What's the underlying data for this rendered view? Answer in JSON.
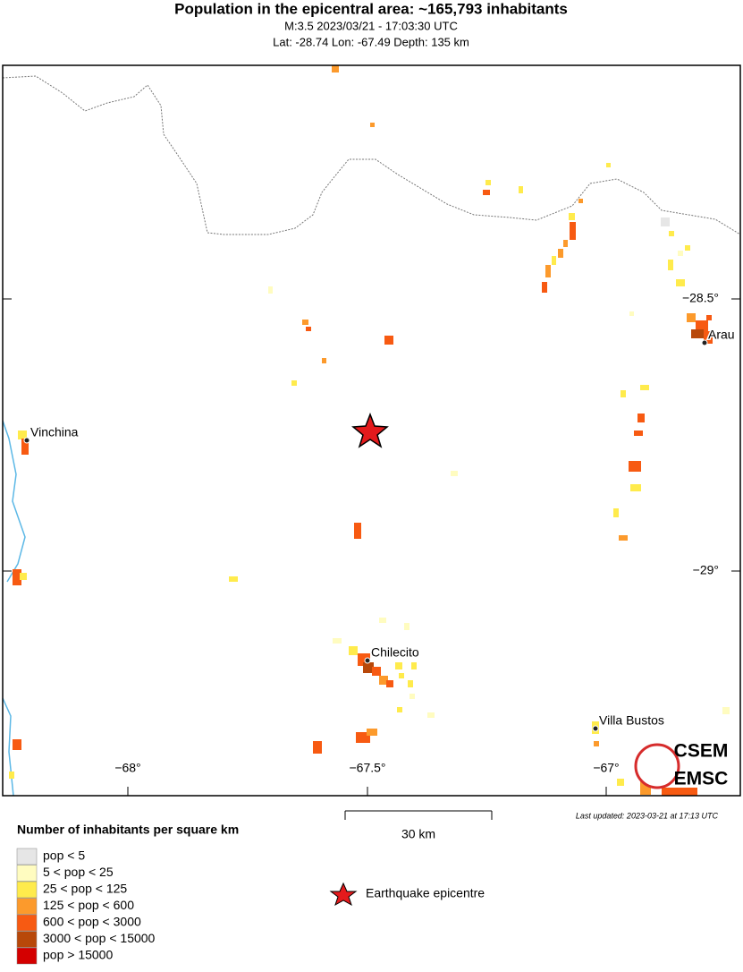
{
  "header": {
    "title": "Population in the epicentral area: ~165,793 inhabitants",
    "event_line": "M:3.5 2023/03/21 - 17:03:30 UTC",
    "location_line": "Lat: -28.74 Lon: -67.49 Depth: 135 km"
  },
  "map": {
    "cities": [
      {
        "name": "Vinchina"
      },
      {
        "name": "Chilecito"
      },
      {
        "name": "Villa Bustos"
      },
      {
        "name": "Arau"
      }
    ],
    "lat_labels": [
      "−28.5°",
      "−29°"
    ],
    "lon_labels": [
      "−68°",
      "−67.5°",
      "−67°"
    ],
    "scale_label": "30 km",
    "last_updated": "Last updated: 2023-03-21 at 17:13 UTC",
    "logo": [
      "CSEM",
      "EMSC"
    ]
  },
  "legend": {
    "title": "Number of inhabitants per square km",
    "items": [
      {
        "label": "pop < 5",
        "color": "#e6e6e6"
      },
      {
        "label": "5 < pop < 25",
        "color": "#fffcc0"
      },
      {
        "label": "25 < pop < 125",
        "color": "#ffeb4c"
      },
      {
        "label": "125 < pop < 600",
        "color": "#fc9a2c"
      },
      {
        "label": "600 < pop < 3000",
        "color": "#f75a12"
      },
      {
        "label": "3000 < pop < 15000",
        "color": "#b8480a"
      },
      {
        "label": "pop > 15000",
        "color": "#d40000"
      }
    ],
    "epicentre_label": "Earthquake epicentre"
  }
}
